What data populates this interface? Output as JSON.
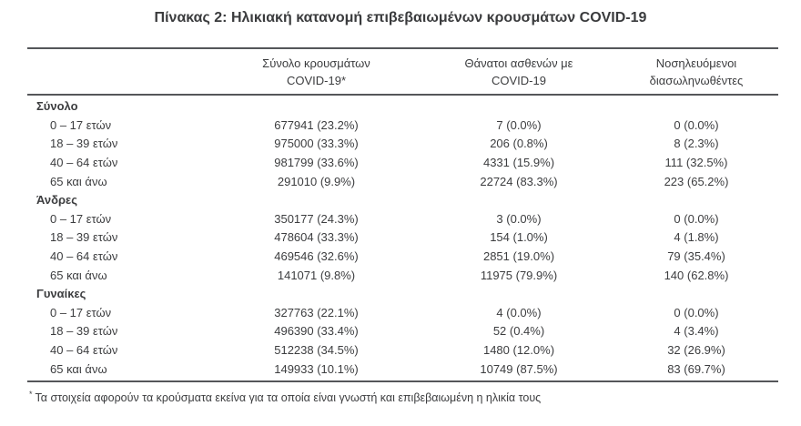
{
  "title": "Πίνακας 2: Ηλικιακή κατανομή επιβεβαιωμένων κρουσμάτων COVID-19",
  "table": {
    "columns": [
      {
        "line1": "Σύνολο κρουσμάτων",
        "line2": "COVID-19*"
      },
      {
        "line1": "Θάνατοι ασθενών με",
        "line2": "COVID-19"
      },
      {
        "line1": "Νοσηλευόμενοι",
        "line2": "διασωληνωθέντες"
      }
    ],
    "sections": [
      {
        "label": "Σύνολο",
        "rows": [
          {
            "label": "0 – 17 ετών",
            "cases": "677941 (23.2%)",
            "deaths": "7 (0.0%)",
            "intubated": "0 (0.0%)"
          },
          {
            "label": "18 – 39 ετών",
            "cases": "975000 (33.3%)",
            "deaths": "206 (0.8%)",
            "intubated": "8 (2.3%)"
          },
          {
            "label": "40 – 64 ετών",
            "cases": "981799 (33.6%)",
            "deaths": "4331 (15.9%)",
            "intubated": "111 (32.5%)"
          },
          {
            "label": "65 και άνω",
            "cases": "291010 (9.9%)",
            "deaths": "22724 (83.3%)",
            "intubated": "223 (65.2%)"
          }
        ]
      },
      {
        "label": "Άνδρες",
        "rows": [
          {
            "label": "0 – 17 ετών",
            "cases": "350177 (24.3%)",
            "deaths": "3 (0.0%)",
            "intubated": "0 (0.0%)"
          },
          {
            "label": "18 – 39 ετών",
            "cases": "478604 (33.3%)",
            "deaths": "154 (1.0%)",
            "intubated": "4 (1.8%)"
          },
          {
            "label": "40 – 64 ετών",
            "cases": "469546 (32.6%)",
            "deaths": "2851 (19.0%)",
            "intubated": "79 (35.4%)"
          },
          {
            "label": "65 και άνω",
            "cases": "141071 (9.8%)",
            "deaths": "11975 (79.9%)",
            "intubated": "140 (62.8%)"
          }
        ]
      },
      {
        "label": "Γυναίκες",
        "rows": [
          {
            "label": "0 – 17 ετών",
            "cases": "327763 (22.1%)",
            "deaths": "4 (0.0%)",
            "intubated": "0 (0.0%)"
          },
          {
            "label": "18 – 39 ετών",
            "cases": "496390 (33.4%)",
            "deaths": "52 (0.4%)",
            "intubated": "4 (3.4%)"
          },
          {
            "label": "40 – 64 ετών",
            "cases": "512238 (34.5%)",
            "deaths": "1480 (12.0%)",
            "intubated": "32 (26.9%)"
          },
          {
            "label": "65 και άνω",
            "cases": "149933 (10.1%)",
            "deaths": "10749 (87.5%)",
            "intubated": "83 (69.7%)"
          }
        ]
      }
    ]
  },
  "footnote": {
    "marker": "*",
    "text": "Τα στοιχεία αφορούν τα κρούσματα εκείνα για τα οποία είναι γνωστή και επιβεβαιωμένη η ηλικία τους"
  }
}
